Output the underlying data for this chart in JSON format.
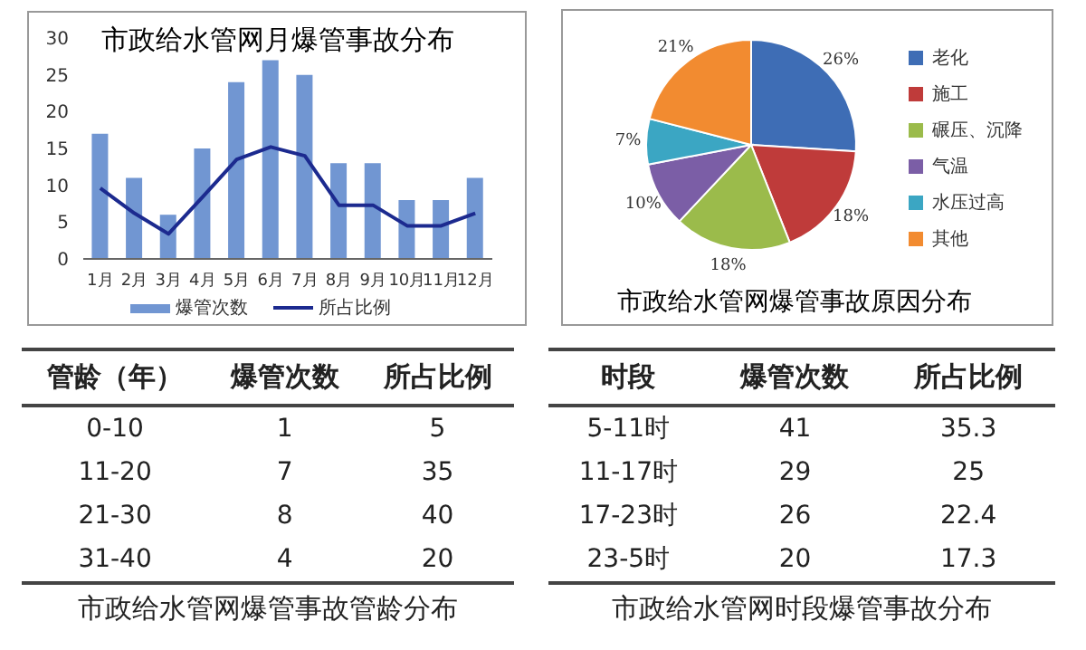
{
  "chart_data": [
    {
      "type": "bar",
      "title": "市政给水管网月爆管事故分布",
      "categories": [
        "1月",
        "2月",
        "3月",
        "4月",
        "5月",
        "6月",
        "7月",
        "8月",
        "9月",
        "10月",
        "11月",
        "12月"
      ],
      "series": [
        {
          "name": "爆管次数",
          "type": "bar",
          "color": "#7196d2",
          "values": [
            17,
            11,
            6,
            15,
            24,
            27,
            25,
            13,
            13,
            8,
            8,
            11
          ]
        },
        {
          "name": "所占比例",
          "type": "line",
          "color": "#1c2a8f",
          "values": [
            9.6,
            6.2,
            3.4,
            8.4,
            13.5,
            15.2,
            14.0,
            7.3,
            7.3,
            4.5,
            4.5,
            6.2
          ]
        }
      ],
      "ylim": [
        0,
        30
      ],
      "yticks": [
        0,
        5,
        10,
        15,
        20,
        25,
        30
      ],
      "legend": "bottom",
      "marker": "none"
    },
    {
      "type": "pie",
      "title": "市政给水管网爆管事故原因分布",
      "categories": [
        "老化",
        "施工",
        "碾压、沉降",
        "气温",
        "水压过高",
        "其他"
      ],
      "values": [
        26,
        18,
        18,
        10,
        7,
        21
      ],
      "value_labels": [
        "26%",
        "18%",
        "18%",
        "10%",
        "7%",
        "21%"
      ],
      "colors": [
        "#3e6db5",
        "#bf3b3a",
        "#9bbb4b",
        "#7b5ea6",
        "#3ba6c3",
        "#f28b30"
      ],
      "legend": "right"
    },
    {
      "type": "other",
      "title": "市政给水管网爆管事故管龄分布",
      "xlabel": "管龄（年）",
      "categories": [
        "0-10",
        "11-20",
        "21-30",
        "31-40"
      ],
      "series": [
        {
          "name": "爆管次数",
          "values": [
            1,
            7,
            8,
            4
          ]
        },
        {
          "name": "所占比例",
          "values": [
            5,
            35,
            40,
            20
          ]
        }
      ],
      "data_labels": true
    },
    {
      "type": "other",
      "title": "市政给水管网时段爆管事故分布",
      "xlabel": "时段",
      "categories": [
        "5-11时",
        "11-17时",
        "17-23时",
        "23-5时"
      ],
      "series": [
        {
          "name": "爆管次数",
          "values": [
            41,
            29,
            26,
            20
          ]
        },
        {
          "name": "所占比例",
          "values": [
            35.3,
            25,
            22.4,
            17.3
          ]
        }
      ],
      "data_labels": true
    }
  ]
}
